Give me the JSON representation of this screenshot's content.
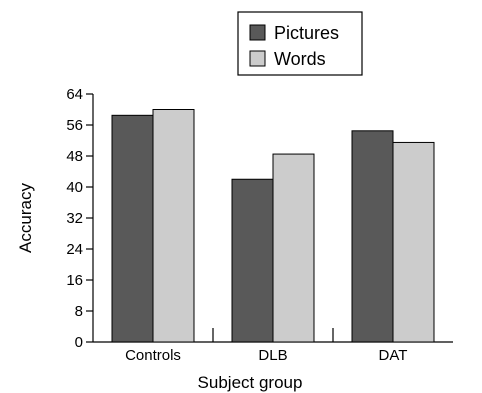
{
  "chart_data": {
    "type": "bar",
    "title": "",
    "xlabel": "Subject group",
    "ylabel": "Accuracy",
    "categories": [
      "Controls",
      "DLB",
      "DAT"
    ],
    "series": [
      {
        "name": "Pictures",
        "values": [
          58.5,
          42,
          54.5
        ],
        "color": "#595959"
      },
      {
        "name": "Words",
        "values": [
          60,
          48.5,
          51.5
        ],
        "color": "#cccccc"
      }
    ],
    "ylim": [
      0,
      64
    ],
    "yticks": [
      0,
      8,
      16,
      24,
      32,
      40,
      48,
      56,
      64
    ],
    "grid": false,
    "legend_position": "top-center",
    "bar_edge_color": "#000000"
  }
}
